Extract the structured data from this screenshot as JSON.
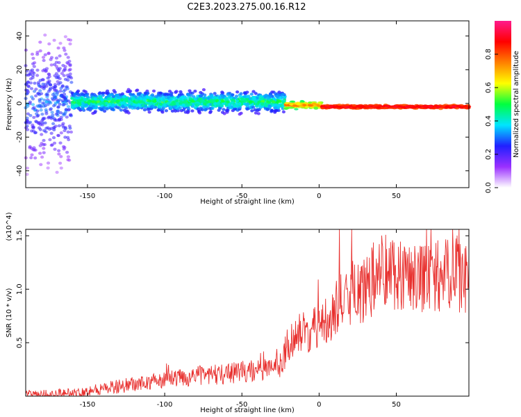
{
  "title": "C2E3.2023.275.00.16.R12",
  "colors": {
    "snr_line": "#e8302e",
    "axis": "#000000"
  },
  "chart_data": [
    {
      "type": "heatmap",
      "xlabel": "Height of straight line (km)",
      "ylabel": "Frequency (Hz)",
      "xlim": [
        -190,
        97
      ],
      "ylim": [
        -50,
        49
      ],
      "xticks": [
        -150,
        -100,
        -50,
        0,
        50
      ],
      "yticks": [
        -40,
        -20,
        0,
        20,
        40
      ],
      "colorbar": {
        "label": "Normalized spectral amplitude",
        "range": [
          0,
          1
        ],
        "ticks": [
          "0.0",
          "0.2",
          "0.4",
          "0.6",
          "0.8"
        ],
        "tick_values": [
          0,
          0.2,
          0.4,
          0.6,
          0.8
        ],
        "colormap": [
          "#ffffff",
          "#9b30ff",
          "#2020ff",
          "#00e5ff",
          "#00ff40",
          "#ffff00",
          "#ff8000",
          "#ff0000",
          "#ff1a8c"
        ]
      },
      "bands": [
        {
          "x_range": [
            -190,
            -160
          ],
          "y_center": 0,
          "y_spread": 49,
          "amplitude": [
            0.05,
            0.35
          ]
        },
        {
          "x_range": [
            -160,
            -22
          ],
          "y_center": 1,
          "y_spread": 8,
          "amplitude": [
            0.15,
            0.55
          ]
        },
        {
          "x_range": [
            -22,
            2
          ],
          "y_center": -1,
          "y_spread": 3,
          "amplitude": [
            0.4,
            0.85
          ]
        },
        {
          "x_range": [
            2,
            97
          ],
          "y_center": -2,
          "y_spread": 1.5,
          "amplitude": [
            0.75,
            0.95
          ]
        }
      ]
    },
    {
      "type": "line",
      "xlabel": "Height of straight line (km)",
      "ylabel": "SNR (10 * v/v)",
      "yscale_label": "(x10^4)",
      "xlim": [
        -190,
        97
      ],
      "ylim": [
        0,
        1.56
      ],
      "xticks": [
        -150,
        -100,
        -50,
        0,
        50
      ],
      "yticks": [
        "0.5",
        "1.0",
        "1.5"
      ],
      "ytick_values": [
        0.5,
        1.0,
        1.5
      ],
      "series": [
        {
          "x": [
            -190,
            -170,
            -155,
            -150,
            -140,
            -130,
            -120,
            -110,
            -100,
            -90,
            -80,
            -70,
            -60,
            -50,
            -40,
            -30,
            -25,
            -20,
            -15,
            -10,
            -5,
            0,
            5,
            10,
            15,
            20,
            25,
            30,
            35,
            40,
            50,
            60,
            70,
            80,
            90,
            97
          ],
          "y": [
            0.015,
            0.02,
            0.03,
            0.05,
            0.07,
            0.09,
            0.11,
            0.13,
            0.15,
            0.17,
            0.19,
            0.2,
            0.21,
            0.23,
            0.24,
            0.26,
            0.29,
            0.5,
            0.56,
            0.6,
            0.62,
            0.68,
            0.74,
            0.78,
            0.88,
            0.92,
            0.96,
            0.99,
            1.08,
            1.2,
            1.16,
            1.13,
            1.12,
            1.12,
            1.13,
            1.08
          ]
        }
      ]
    }
  ]
}
